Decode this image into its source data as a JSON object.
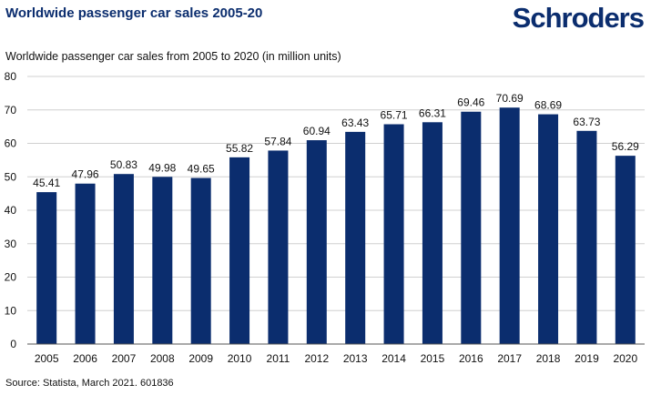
{
  "header": {
    "title": "Worldwide passenger car sales 2005-20",
    "logo_text": "Schroders"
  },
  "footer": {
    "source": "Source: Statista, March 2021. 601836"
  },
  "colors": {
    "bar": "#0b2d6e",
    "brand": "#0b2d6e",
    "gridline": "#d0d0d0",
    "axis": "#555555"
  },
  "chart_data": {
    "type": "bar",
    "title": "Worldwide passenger car sales from 2005 to 2020 (in million units)",
    "xlabel": "",
    "ylabel": "",
    "categories": [
      "2005",
      "2006",
      "2007",
      "2008",
      "2009",
      "2010",
      "2011",
      "2012",
      "2013",
      "2014",
      "2015",
      "2016",
      "2017",
      "2018",
      "2019",
      "2020"
    ],
    "values": [
      45.41,
      47.96,
      50.83,
      49.98,
      49.65,
      55.82,
      57.84,
      60.94,
      63.43,
      65.71,
      66.31,
      69.46,
      70.69,
      68.69,
      63.73,
      56.29
    ],
    "value_labels": [
      "45.41",
      "47.96",
      "50.83",
      "49.98",
      "49.65",
      "55.82",
      "57.84",
      "60.94",
      "63.43",
      "65.71",
      "66.31",
      "69.46",
      "70.69",
      "68.69",
      "63.73",
      "56.29"
    ],
    "ylim": [
      0,
      80
    ],
    "yticks": [
      0,
      10,
      20,
      30,
      40,
      50,
      60,
      70,
      80
    ],
    "grid": true,
    "legend": "none"
  }
}
